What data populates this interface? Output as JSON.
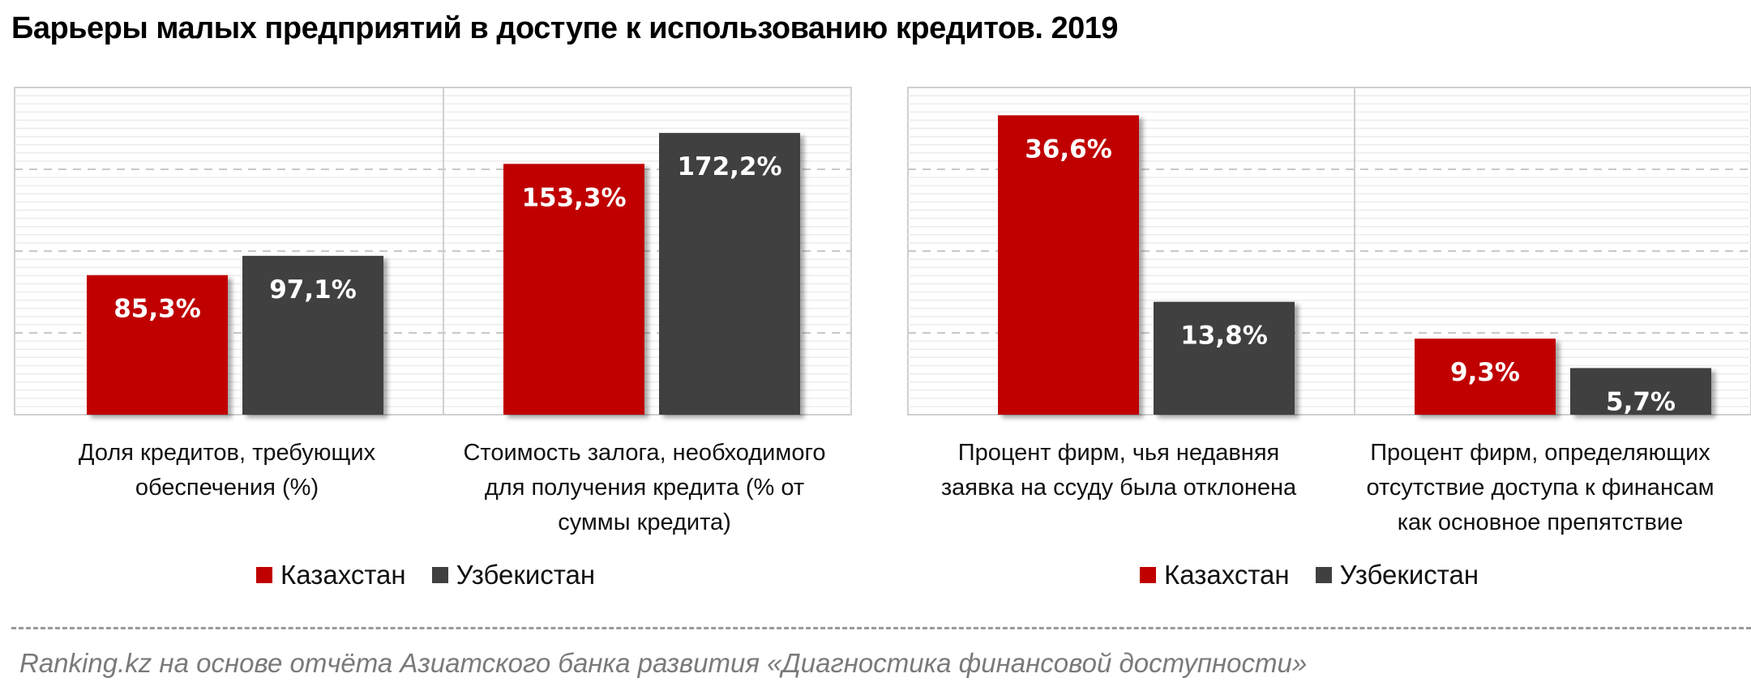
{
  "title": "Барьеры малых предприятий в доступе к использованию  кредитов. 2019",
  "colors": {
    "kazakhstan": "#c00000",
    "uzbekistan": "#404040",
    "grid": "#dcdcdc",
    "frame": "#d0d0d0"
  },
  "legend": [
    {
      "label": "Казахстан",
      "color": "#c00000"
    },
    {
      "label": "Узбекистан",
      "color": "#404040"
    }
  ],
  "chart_data": [
    {
      "type": "bar",
      "title": "",
      "categories": [
        "Доля кредитов, требующих обеспечения (%)",
        "Стоимость залога, необходимого для получения кредита (% от суммы кредита)"
      ],
      "category_lines": [
        [
          "Доля кредитов, требующих",
          "обеспечения (%)"
        ],
        [
          "Стоимость залога, необходимого",
          "для получения кредита (% от",
          "суммы кредита)"
        ]
      ],
      "series": [
        {
          "name": "Казахстан",
          "values": [
            85.3,
            153.3
          ],
          "labels": [
            "85,3%",
            "153,3%"
          ]
        },
        {
          "name": "Узбекистан",
          "values": [
            97.1,
            172.2
          ],
          "labels": [
            "97,1%",
            "172,2%"
          ]
        }
      ],
      "ylim": [
        0,
        200
      ],
      "grid": true,
      "legend_position": "bottom"
    },
    {
      "type": "bar",
      "title": "",
      "categories": [
        "Процент фирм, чья недавняя заявка на ссуду была отклонена",
        "Процент фирм, определяющих отсутствие доступа к финансам как основное препятствие"
      ],
      "category_lines": [
        [
          "Процент фирм, чья недавняя",
          "заявка на ссуду была отклонена"
        ],
        [
          "Процент фирм, определяющих",
          "отсутствие доступа к финансам",
          "как основное препятствие"
        ]
      ],
      "series": [
        {
          "name": "Казахстан",
          "values": [
            36.6,
            9.3
          ],
          "labels": [
            "36,6%",
            "9,3%"
          ]
        },
        {
          "name": "Узбекистан",
          "values": [
            13.8,
            5.7
          ],
          "labels": [
            "13,8%",
            "5,7%"
          ]
        }
      ],
      "ylim": [
        0,
        40
      ],
      "grid": true,
      "legend_position": "bottom"
    }
  ],
  "source": "Ranking.kz на основе отчёта Азиатского банка развития «Диагностика финансовой доступности»"
}
